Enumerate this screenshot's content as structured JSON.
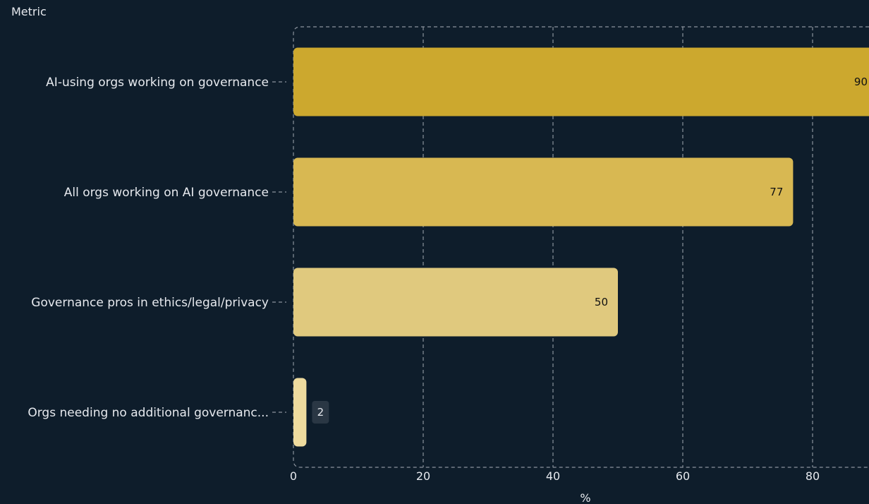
{
  "chart_data": {
    "type": "bar",
    "orientation": "horizontal",
    "y_axis_title": "Metric",
    "x_axis_title": "%",
    "categories": [
      "AI-using orgs working on governance",
      "All orgs working on AI governance",
      "Governance pros in ethics/legal/privacy",
      "Orgs needing no additional governanc..."
    ],
    "values": [
      90,
      77,
      50,
      2
    ],
    "value_labels": [
      "90",
      "77",
      "50",
      "2"
    ],
    "x_ticks": [
      {
        "value": 0,
        "label": "0"
      },
      {
        "value": 20,
        "label": "20"
      },
      {
        "value": 40,
        "label": "40"
      },
      {
        "value": 60,
        "label": "60"
      },
      {
        "value": 80,
        "label": "80"
      }
    ],
    "xlim": [
      0,
      90
    ],
    "grid": true,
    "bar_colors": [
      "#cca82e",
      "#d8b852",
      "#e0c97e",
      "#eedb9e"
    ]
  },
  "theme": {
    "background": "#0e1d2b",
    "text": "#e6e9ee",
    "grid": "#8a929c",
    "value_label_dark": "#111111",
    "value_badge_bg": "#2a3744"
  }
}
